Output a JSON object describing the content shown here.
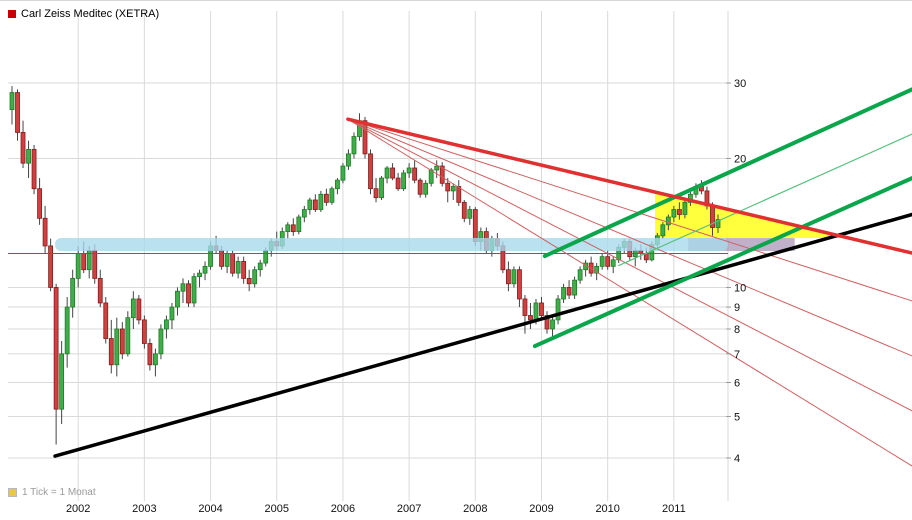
{
  "header": {
    "title": "Carl Zeiss Meditec (XETRA)"
  },
  "footer": {
    "tick_note": "1 Tick = 1 Monat"
  },
  "chart_data": {
    "type": "candlestick",
    "title": "Carl Zeiss Meditec (XETRA)",
    "instrument": "Carl Zeiss Meditec",
    "exchange": "XETRA",
    "tick_interval": "1 Monat",
    "yscale": "log",
    "ylim": [
      3.2,
      44
    ],
    "yticks": [
      30,
      20,
      10,
      9,
      8,
      7,
      6,
      5,
      4
    ],
    "x_year_labels": [
      "2002",
      "2003",
      "2004",
      "2005",
      "2006",
      "2007",
      "2008",
      "2009",
      "2010",
      "2011"
    ],
    "series_start": "2001-01",
    "ohlc_monthly": [
      [
        26,
        29.5,
        24,
        28.5
      ],
      [
        28.5,
        29,
        22,
        23
      ],
      [
        23,
        24.5,
        19,
        19.5
      ],
      [
        19.5,
        22,
        18,
        21
      ],
      [
        21,
        21.5,
        16.5,
        17
      ],
      [
        17,
        18,
        14,
        14.5
      ],
      [
        14.5,
        15.5,
        12,
        12.5
      ],
      [
        12.5,
        13,
        9.8,
        10
      ],
      [
        10,
        10.2,
        4.3,
        5.2
      ],
      [
        5.2,
        7.5,
        4.8,
        7
      ],
      [
        7,
        9.5,
        6.5,
        9
      ],
      [
        9,
        11,
        8.5,
        10.5
      ],
      [
        10.5,
        12.5,
        10,
        12
      ],
      [
        12,
        12.8,
        10.8,
        11
      ],
      [
        11,
        12.5,
        10.5,
        12.2
      ],
      [
        12.2,
        12.6,
        10.2,
        10.5
      ],
      [
        10.5,
        11,
        9,
        9.2
      ],
      [
        9.2,
        9.5,
        7.4,
        7.6
      ],
      [
        7.6,
        8.4,
        6.3,
        6.6
      ],
      [
        6.6,
        8.5,
        6.2,
        8
      ],
      [
        8,
        8.3,
        6.8,
        7
      ],
      [
        7,
        8.8,
        6.9,
        8.5
      ],
      [
        8.5,
        9.8,
        8,
        9.4
      ],
      [
        9.4,
        9.6,
        8.2,
        8.4
      ],
      [
        8.4,
        8.6,
        7.2,
        7.4
      ],
      [
        7.4,
        7.6,
        6.4,
        6.6
      ],
      [
        6.6,
        7.2,
        6.2,
        7
      ],
      [
        7,
        8.2,
        6.8,
        8
      ],
      [
        8,
        8.6,
        7.6,
        8.4
      ],
      [
        8.4,
        9.2,
        8,
        9
      ],
      [
        9,
        10,
        8.6,
        9.8
      ],
      [
        9.8,
        10.5,
        9.2,
        10.2
      ],
      [
        10.2,
        10.4,
        9,
        9.2
      ],
      [
        9.2,
        10.8,
        9,
        10.6
      ],
      [
        10.6,
        11,
        10,
        10.8
      ],
      [
        10.8,
        11.5,
        10.4,
        11.2
      ],
      [
        11.2,
        12.8,
        11,
        12.5
      ],
      [
        12.5,
        13.2,
        12,
        12.2
      ],
      [
        12.2,
        12.5,
        11,
        11.2
      ],
      [
        11.2,
        12.2,
        10.8,
        12
      ],
      [
        12,
        12.2,
        10.6,
        10.8
      ],
      [
        10.8,
        11.8,
        10.5,
        11.5
      ],
      [
        11.5,
        11.8,
        10.2,
        10.5
      ],
      [
        10.5,
        11,
        9.8,
        10.2
      ],
      [
        10.2,
        11.2,
        10,
        11
      ],
      [
        11,
        11.6,
        10.6,
        11.4
      ],
      [
        11.4,
        12.4,
        11.2,
        12.2
      ],
      [
        12.2,
        13,
        11.8,
        12.8
      ],
      [
        12.8,
        13.5,
        12.2,
        12.5
      ],
      [
        12.5,
        13.8,
        12.3,
        13.5
      ],
      [
        13.5,
        14.2,
        13,
        14
      ],
      [
        14,
        14.5,
        13.2,
        13.5
      ],
      [
        13.5,
        14.8,
        13.3,
        14.6
      ],
      [
        14.6,
        15.5,
        14.2,
        15.2
      ],
      [
        15.2,
        16.2,
        14.8,
        16
      ],
      [
        16,
        16.5,
        15,
        15.2
      ],
      [
        15.2,
        16.8,
        15,
        16.5
      ],
      [
        16.5,
        17,
        15.5,
        15.8
      ],
      [
        15.8,
        17.2,
        15.6,
        17
      ],
      [
        17,
        18,
        16.5,
        17.8
      ],
      [
        17.8,
        19.5,
        17.5,
        19.2
      ],
      [
        19.2,
        21,
        18.8,
        20.5
      ],
      [
        20.5,
        23,
        20,
        22.5
      ],
      [
        22.5,
        25.5,
        22,
        24.5
      ],
      [
        24.5,
        25,
        20,
        20.5
      ],
      [
        20.5,
        21,
        16.5,
        17
      ],
      [
        17,
        18,
        15.8,
        16.2
      ],
      [
        16.2,
        18.2,
        16,
        18
      ],
      [
        18,
        19.2,
        17.5,
        19
      ],
      [
        19,
        19.5,
        17.8,
        18
      ],
      [
        18,
        18.5,
        16.8,
        17
      ],
      [
        17,
        18.8,
        16.8,
        18.5
      ],
      [
        18.5,
        19.5,
        18,
        19
      ],
      [
        19,
        19.8,
        17.5,
        17.8
      ],
      [
        17.8,
        18,
        16.2,
        16.5
      ],
      [
        16.5,
        17.8,
        16.2,
        17.5
      ],
      [
        17.5,
        19,
        17.2,
        18.8
      ],
      [
        18.8,
        19.8,
        18,
        19.2
      ],
      [
        19.2,
        19.6,
        17.2,
        17.5
      ],
      [
        17.5,
        18,
        15.8,
        16.8
      ],
      [
        16.8,
        17.5,
        16,
        17.2
      ],
      [
        17.2,
        17.8,
        15.5,
        15.8
      ],
      [
        15.8,
        16,
        14.2,
        14.5
      ],
      [
        14.5,
        15.5,
        14,
        15.2
      ],
      [
        15.2,
        15.4,
        12.5,
        12.8
      ],
      [
        12.8,
        13.8,
        12.2,
        13.5
      ],
      [
        13.5,
        13.8,
        12,
        12.2
      ],
      [
        12.2,
        13.2,
        11.8,
        13
      ],
      [
        13,
        13.4,
        12.2,
        12.5
      ],
      [
        12.5,
        12.8,
        10.8,
        11
      ],
      [
        11,
        11.5,
        9.8,
        10.2
      ],
      [
        10.2,
        11.2,
        10,
        11
      ],
      [
        11,
        11.2,
        9,
        9.4
      ],
      [
        9.4,
        9.6,
        7.8,
        8.6
      ],
      [
        8.6,
        9.2,
        8,
        8.4
      ],
      [
        8.4,
        9.4,
        8.2,
        9.2
      ],
      [
        9.2,
        9.5,
        8.4,
        8.6
      ],
      [
        8.6,
        8.8,
        7.8,
        8
      ],
      [
        8,
        8.6,
        7.6,
        8.4
      ],
      [
        8.4,
        9.6,
        8.2,
        9.4
      ],
      [
        9.4,
        10.2,
        9.2,
        10
      ],
      [
        10,
        10.4,
        9.4,
        9.6
      ],
      [
        9.6,
        10.6,
        9.4,
        10.4
      ],
      [
        10.4,
        11.2,
        10.2,
        11
      ],
      [
        11,
        11.6,
        10.6,
        11.4
      ],
      [
        11.4,
        11.8,
        10.6,
        10.8
      ],
      [
        10.8,
        11.4,
        10.4,
        11.2
      ],
      [
        11.2,
        12,
        11,
        11.8
      ],
      [
        11.8,
        12.2,
        11,
        11.2
      ],
      [
        11.2,
        11.8,
        10.8,
        11.6
      ],
      [
        11.6,
        12.6,
        11.4,
        12.4
      ],
      [
        12.4,
        13,
        12,
        12.8
      ],
      [
        12.8,
        13,
        11.6,
        11.8
      ],
      [
        11.8,
        12.4,
        11.2,
        12.2
      ],
      [
        12.2,
        12.6,
        11.6,
        12
      ],
      [
        12,
        12.4,
        11.4,
        11.6
      ],
      [
        11.6,
        12.8,
        11.5,
        12.6
      ],
      [
        12.6,
        13.4,
        12.4,
        13.2
      ],
      [
        13.2,
        14.2,
        13,
        14
      ],
      [
        14,
        14.8,
        13.6,
        14.6
      ],
      [
        14.6,
        15.5,
        14.2,
        15.2
      ],
      [
        15.2,
        15.8,
        14.4,
        14.8
      ],
      [
        14.8,
        16,
        14.5,
        15.8
      ],
      [
        15.8,
        16.8,
        15.5,
        16.5
      ],
      [
        16.5,
        17.5,
        16.2,
        17.2
      ],
      [
        17.2,
        17.8,
        16.5,
        16.8
      ],
      [
        16.8,
        17.2,
        15.2,
        15.5
      ],
      [
        15.5,
        15.8,
        13.2,
        13.8
      ],
      [
        13.8,
        14.8,
        13.4,
        14.4
      ]
    ],
    "colors": {
      "up_fill": "#3fae49",
      "up_stroke": "#1f7a28",
      "down_fill": "#d04040",
      "down_stroke": "#7e1e1e",
      "wick": "#444444",
      "grid": "#dadada",
      "axis_text": "#111111"
    },
    "annotations": {
      "support_zone": {
        "i_from": 7.8,
        "i_to": 129.8,
        "price_from": 12.16,
        "price_to": 13.04,
        "color": "#a6d9ec",
        "opacity": 0.78
      },
      "hline": {
        "price": 12.0,
        "color": "#cc3333"
      },
      "trend_black": {
        "from": [
          7.8,
          4.04
        ],
        "to": [
          163.2,
          14.8
        ],
        "color": "#000000",
        "width": 3.5
      },
      "trend_red": {
        "from": [
          60.9,
          24.7
        ],
        "to": [
          163.2,
          12.03
        ],
        "color": "#e03030",
        "width": 3.5
      },
      "fan_lines": {
        "origin": [
          60.9,
          24.7
        ],
        "targets": [
          [
            163.2,
            9.3
          ],
          [
            163.2,
            6.92
          ],
          [
            163.2,
            5.15
          ],
          [
            163.2,
            3.83
          ]
        ],
        "color": "#cf6060",
        "width": 1
      },
      "channel_green": {
        "color": "#0aa64b",
        "width": 4,
        "lines": [
          {
            "from": [
              94.8,
              7.3
            ],
            "to": [
              163.2,
              18.0
            ]
          },
          {
            "from": [
              96.6,
              11.84
            ],
            "to": [
              163.2,
              29.0
            ]
          }
        ],
        "midline": {
          "from": [
            110,
            11.25
          ],
          "to": [
            163.2,
            22.8
          ],
          "color": "#57c27d",
          "width": 1.2
        }
      },
      "wedge_yellow": {
        "points": [
          [
            116.6,
            16.7
          ],
          [
            116.6,
            13.04
          ],
          [
            151,
            13.04
          ]
        ],
        "color": "#ffff2e",
        "opacity": 0.92
      },
      "zone_purple": {
        "i_from": 122.6,
        "i_to": 141.9,
        "price_from": 12.16,
        "price_to": 13.04,
        "color": "#9f86ae",
        "opacity": 0.65
      }
    }
  }
}
